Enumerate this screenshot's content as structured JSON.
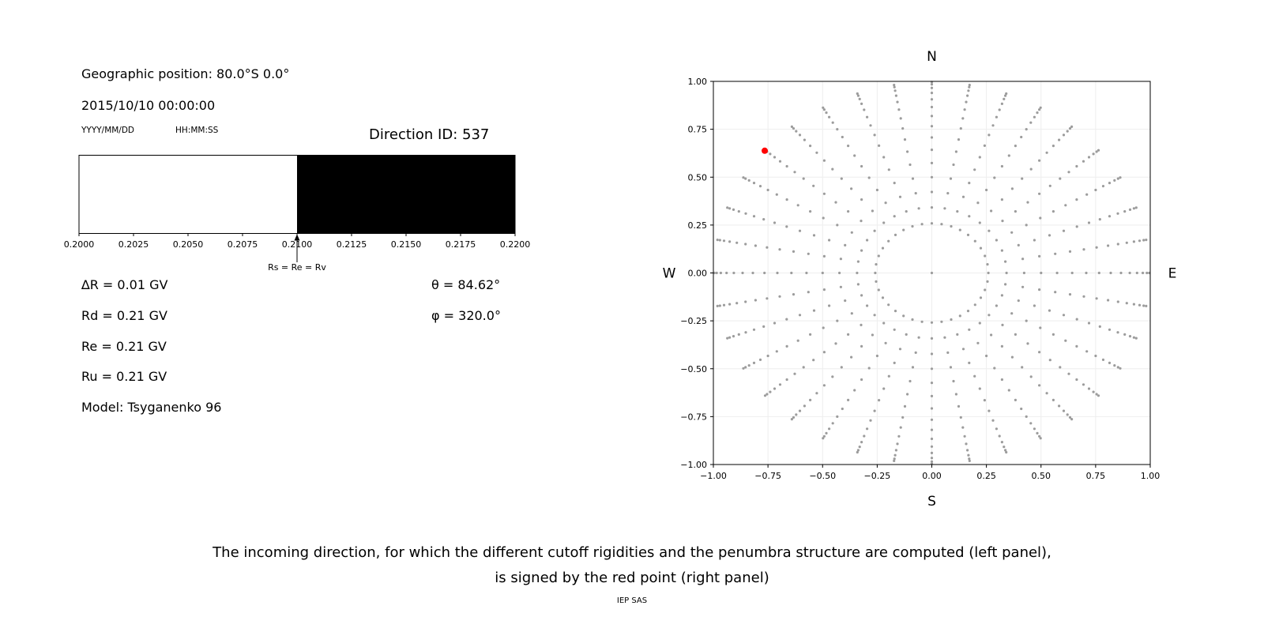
{
  "left_panel": {
    "geographic_position": "Geographic position: 80.0°S 0.0°",
    "datetime": "2015/10/10 00:00:00",
    "date_format_label": "YYYY/MM/DD",
    "time_format_label": "HH:MM:SS",
    "direction_id_label": "Direction ID: 537",
    "parameters": [
      "∆R = 0.01 GV",
      "Rd = 0.21 GV",
      "Re = 0.21 GV",
      "Ru = 0.21 GV",
      "Model: Tsyganenko 96"
    ],
    "theta_label": "θ = 84.62°",
    "phi_label": "φ = 320.0°"
  },
  "caption": {
    "line1": "The incoming direction, for which the different cutoff rigidities and the penumbra structure are computed (left panel),",
    "line2": "is signed by the red point (right panel)",
    "credit": "IEP SAS"
  },
  "chart_data": [
    {
      "type": "bar",
      "xlim": [
        0.2,
        0.22
      ],
      "xticks": [
        0.2,
        0.2025,
        0.205,
        0.2075,
        0.21,
        0.2125,
        0.215,
        0.2175,
        0.22
      ],
      "xtick_labels": [
        "0.2000",
        "0.2025",
        "0.2050",
        "0.2075",
        "0.2100",
        "0.2125",
        "0.2150",
        "0.2175",
        "0.2200"
      ],
      "segments": [
        {
          "name": "allowed-band",
          "from": 0.2,
          "to": 0.21,
          "color": "#ffffff"
        },
        {
          "name": "forbidden-band",
          "from": 0.21,
          "to": 0.22,
          "color": "#000000"
        }
      ],
      "marker": {
        "x": 0.21,
        "label": "Rs = Re = Rv"
      }
    },
    {
      "type": "scatter",
      "xlim": [
        -1,
        1
      ],
      "ylim": [
        -1,
        1
      ],
      "xticks": [
        -1,
        -0.75,
        -0.5,
        -0.25,
        0,
        0.25,
        0.5,
        0.75,
        1
      ],
      "xtick_labels": [
        "−1.00",
        "−0.75",
        "−0.50",
        "−0.25",
        "0.00",
        "0.25",
        "0.50",
        "0.75",
        "1.00"
      ],
      "yticks": [
        1,
        0.75,
        0.5,
        0.25,
        0,
        -0.25,
        -0.5,
        -0.75,
        -1
      ],
      "ytick_labels": [
        "1.00",
        "0.75",
        "0.50",
        "0.25",
        "0.00",
        "−0.25",
        "−0.50",
        "−0.75",
        "−1.00"
      ],
      "compass": {
        "top": "N",
        "bottom": "S",
        "left": "W",
        "right": "E"
      },
      "grid": true,
      "point_color": "#9c9c9c",
      "directions_grid": {
        "azimuth_start_deg": 0,
        "azimuth_step_deg": 10,
        "azimuth_count": 36,
        "zenith_start_deg": 15,
        "zenith_step_deg": 5,
        "zenith_end_deg": 85,
        "center_point": true,
        "projection": "x = sin(zenith)*sin(azimuth), y = sin(zenith)*cos(azimuth)"
      },
      "red_point": {
        "x": -0.765,
        "y": 0.638,
        "color": "#ff0000"
      }
    }
  ]
}
